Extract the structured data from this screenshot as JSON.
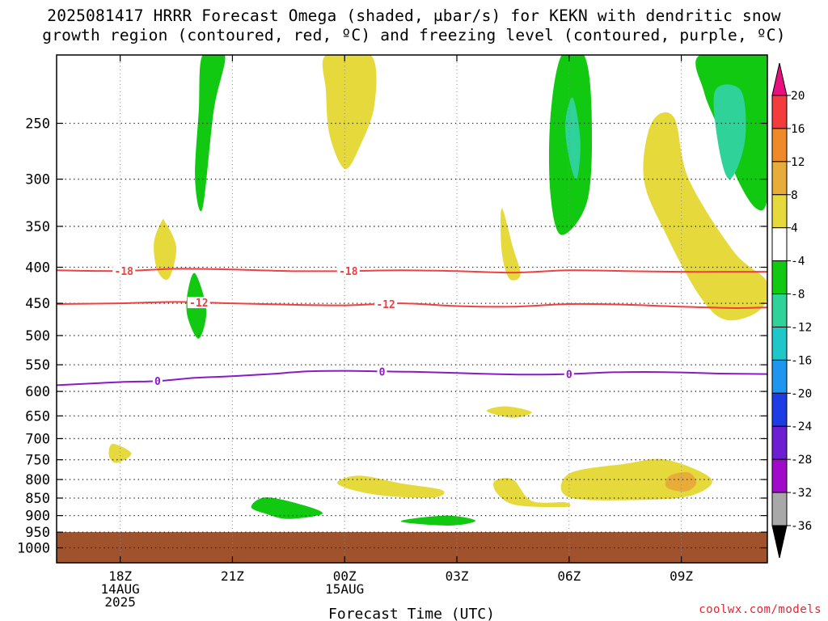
{
  "title": {
    "line1": "2025081417 HRRR Forecast Omega (shaded, μbar/s) for KEKN with dendritic snow",
    "line2": "growth region (contoured, red, ºC) and freezing level (contoured, purple, ºC)"
  },
  "credit": "coolwx.com/models",
  "chart_data": {
    "type": "heatmap",
    "xlabel": "Forecast Time (UTC)",
    "x_range_hours": [
      16.3,
      35.3
    ],
    "x_ticks": [
      {
        "hour": 18,
        "lines": [
          "18Z",
          "14AUG",
          "2025"
        ]
      },
      {
        "hour": 21,
        "lines": [
          "21Z"
        ]
      },
      {
        "hour": 24,
        "lines": [
          "00Z",
          "15AUG"
        ]
      },
      {
        "hour": 27,
        "lines": [
          "03Z"
        ]
      },
      {
        "hour": 30,
        "lines": [
          "06Z"
        ]
      },
      {
        "hour": 33,
        "lines": [
          "09Z"
        ]
      }
    ],
    "y_scale": "log",
    "y_range_hpa": [
      1050,
      200
    ],
    "y_ticks": [
      250,
      300,
      350,
      400,
      450,
      500,
      550,
      600,
      650,
      700,
      750,
      800,
      850,
      900,
      950,
      1000
    ],
    "colorbar": {
      "levels": [
        20,
        16,
        12,
        8,
        4,
        -4,
        -8,
        -12,
        -16,
        -20,
        -24,
        -28,
        -32,
        -36
      ],
      "bands": [
        {
          "from": 16,
          "to": 20,
          "color": "#f53c3c"
        },
        {
          "from": 12,
          "to": 16,
          "color": "#ef8a28"
        },
        {
          "from": 8,
          "to": 12,
          "color": "#e8ac38"
        },
        {
          "from": 4,
          "to": 8,
          "color": "#e6d93c"
        },
        {
          "from": -4,
          "to": 4,
          "color": "#ffffff"
        },
        {
          "from": -8,
          "to": -4,
          "color": "#12c912"
        },
        {
          "from": -12,
          "to": -8,
          "color": "#2fd298"
        },
        {
          "from": -16,
          "to": -12,
          "color": "#1ec8c8"
        },
        {
          "from": -20,
          "to": -16,
          "color": "#1e96f0"
        },
        {
          "from": -24,
          "to": -20,
          "color": "#1e3ce6"
        },
        {
          "from": -28,
          "to": -24,
          "color": "#6e1ed2"
        },
        {
          "from": -32,
          "to": -28,
          "color": "#a00ac8"
        },
        {
          "from": -36,
          "to": -32,
          "color": "#a8a8a8"
        }
      ],
      "top_arrow_color": "#e8107e",
      "bottom_arrow_color": "#000000"
    },
    "ground_level_hpa": 950,
    "ground_color": "#a0522d",
    "contours": [
      {
        "name": "-18 °C",
        "label": "-18",
        "color": "#f04040",
        "points": [
          [
            16.3,
            404
          ],
          [
            18,
            405
          ],
          [
            19.5,
            402
          ],
          [
            21,
            403
          ],
          [
            22.5,
            405
          ],
          [
            24,
            405
          ],
          [
            25.5,
            404
          ],
          [
            27,
            405
          ],
          [
            28.5,
            407
          ],
          [
            30,
            404
          ],
          [
            31.5,
            405
          ],
          [
            33,
            406
          ],
          [
            34.5,
            406
          ],
          [
            35.3,
            406
          ]
        ],
        "label_hours": [
          18.1,
          24.1
        ]
      },
      {
        "name": "-12 °C",
        "label": "-12",
        "color": "#f04040",
        "points": [
          [
            16.3,
            451
          ],
          [
            18,
            450
          ],
          [
            19.5,
            448
          ],
          [
            21,
            450
          ],
          [
            22.5,
            452
          ],
          [
            24,
            453
          ],
          [
            25.5,
            450
          ],
          [
            27,
            454
          ],
          [
            28.5,
            455
          ],
          [
            30,
            451
          ],
          [
            31.5,
            452
          ],
          [
            33,
            455
          ],
          [
            34.5,
            457
          ],
          [
            35.3,
            456
          ]
        ],
        "label_hours": [
          20.1,
          25.1
        ]
      },
      {
        "name": "0 °C",
        "label": "0",
        "color": "#8a1ac8",
        "points": [
          [
            16.3,
            588
          ],
          [
            18,
            582
          ],
          [
            19,
            580
          ],
          [
            20,
            574
          ],
          [
            21,
            571
          ],
          [
            22,
            567
          ],
          [
            23,
            562
          ],
          [
            24,
            561
          ],
          [
            25,
            562
          ],
          [
            26,
            563
          ],
          [
            27,
            565
          ],
          [
            28,
            567
          ],
          [
            29,
            568
          ],
          [
            30,
            567
          ],
          [
            31,
            564
          ],
          [
            32,
            563
          ],
          [
            33,
            564
          ],
          [
            34,
            566
          ],
          [
            35.3,
            567
          ]
        ],
        "label_hours": [
          19.0,
          25.0,
          30.0
        ]
      }
    ],
    "omega_regions": [
      {
        "value_range": [
          4,
          8
        ],
        "color": "#e6d93c",
        "points": [
          [
            23.5,
            200
          ],
          [
            24.7,
            200
          ],
          [
            24.8,
            235
          ],
          [
            24.4,
            270
          ],
          [
            24,
            290
          ],
          [
            23.6,
            260
          ],
          [
            23.5,
            225
          ]
        ]
      },
      {
        "value_range": [
          -8,
          -4
        ],
        "color": "#12c912",
        "points": [
          [
            20.2,
            200
          ],
          [
            20.8,
            200
          ],
          [
            20.5,
            240
          ],
          [
            20.2,
            330
          ],
          [
            20,
            300
          ],
          [
            20.1,
            240
          ]
        ]
      },
      {
        "value_range": [
          4,
          8
        ],
        "color": "#e6d93c",
        "points": [
          [
            19.2,
            345
          ],
          [
            19.5,
            375
          ],
          [
            19.3,
            415
          ],
          [
            19,
            405
          ],
          [
            18.9,
            370
          ],
          [
            19.1,
            345
          ]
        ]
      },
      {
        "value_range": [
          -8,
          -4
        ],
        "color": "#12c912",
        "points": [
          [
            20,
            408
          ],
          [
            20.3,
            460
          ],
          [
            20.1,
            505
          ],
          [
            19.8,
            470
          ],
          [
            19.8,
            435
          ]
        ]
      },
      {
        "value_range": [
          -8,
          -4
        ],
        "color": "#12c912",
        "points": [
          [
            29.8,
            200
          ],
          [
            30.4,
            200
          ],
          [
            30.6,
            240
          ],
          [
            30.5,
            320
          ],
          [
            29.8,
            360
          ],
          [
            29.5,
            315
          ],
          [
            29.5,
            245
          ]
        ]
      },
      {
        "value_range": [
          -12,
          -8
        ],
        "color": "#2fd298",
        "points": [
          [
            30.1,
            230
          ],
          [
            30.3,
            265
          ],
          [
            30.2,
            300
          ],
          [
            30,
            280
          ],
          [
            29.9,
            250
          ]
        ]
      },
      {
        "value_range": [
          4,
          8
        ],
        "color": "#e6d93c",
        "points": [
          [
            28.2,
            330
          ],
          [
            28.5,
            375
          ],
          [
            28.7,
            410
          ],
          [
            28.4,
            415
          ],
          [
            28.2,
            380
          ]
        ]
      },
      {
        "value_range": [
          -8,
          -4
        ],
        "color": "#12c912",
        "points": [
          [
            33.5,
            200
          ],
          [
            35.3,
            200
          ],
          [
            35.4,
            250
          ],
          [
            35.3,
            320
          ],
          [
            35,
            330
          ],
          [
            34.5,
            300
          ],
          [
            34,
            255
          ],
          [
            33.6,
            225
          ]
        ]
      },
      {
        "value_range": [
          -12,
          -8
        ],
        "color": "#2fd298",
        "points": [
          [
            33.9,
            225
          ],
          [
            34.6,
            225
          ],
          [
            34.7,
            265
          ],
          [
            34.3,
            300
          ],
          [
            34,
            270
          ]
        ]
      },
      {
        "value_range": [
          4,
          8
        ],
        "color": "#e6d93c",
        "points": [
          [
            32.2,
            250
          ],
          [
            32.8,
            245
          ],
          [
            33.2,
            300
          ],
          [
            34.4,
            380
          ],
          [
            35.3,
            420
          ],
          [
            35.1,
            460
          ],
          [
            34.2,
            475
          ],
          [
            33.5,
            440
          ],
          [
            32.6,
            360
          ],
          [
            32,
            300
          ]
        ]
      },
      {
        "value_range": [
          4,
          8
        ],
        "color": "#e6d93c",
        "points": [
          [
            17.8,
            712
          ],
          [
            18.3,
            735
          ],
          [
            17.9,
            758
          ],
          [
            17.7,
            740
          ]
        ]
      },
      {
        "value_range": [
          4,
          8
        ],
        "color": "#e6d93c",
        "points": [
          [
            23.8,
            808
          ],
          [
            24.4,
            790
          ],
          [
            25.5,
            810
          ],
          [
            26.6,
            828
          ],
          [
            26.4,
            848
          ],
          [
            25.2,
            845
          ],
          [
            24.3,
            830
          ]
        ]
      },
      {
        "value_range": [
          -8,
          -4
        ],
        "color": "#12c912",
        "points": [
          [
            21.5,
            875
          ],
          [
            21.9,
            848
          ],
          [
            22.9,
            870
          ],
          [
            23.4,
            895
          ],
          [
            22.5,
            910
          ],
          [
            21.9,
            895
          ]
        ]
      },
      {
        "value_range": [
          -8,
          -4
        ],
        "color": "#12c912",
        "points": [
          [
            25.5,
            917
          ],
          [
            26.7,
            900
          ],
          [
            27.5,
            915
          ],
          [
            26.8,
            930
          ]
        ]
      },
      {
        "value_range": [
          4,
          8
        ],
        "color": "#e6d93c",
        "points": [
          [
            28,
            805
          ],
          [
            28.5,
            800
          ],
          [
            29,
            858
          ],
          [
            29.9,
            862
          ],
          [
            29.9,
            875
          ],
          [
            28.6,
            870
          ],
          [
            28.1,
            840
          ]
        ]
      },
      {
        "value_range": [
          4,
          8
        ],
        "color": "#e6d93c",
        "points": [
          [
            27.8,
            640
          ],
          [
            28.3,
            630
          ],
          [
            29,
            642
          ],
          [
            28.5,
            654
          ]
        ]
      },
      {
        "value_range": [
          4,
          8
        ],
        "color": "#e6d93c",
        "points": [
          [
            30,
            785
          ],
          [
            31.5,
            760
          ],
          [
            32.6,
            750
          ],
          [
            33.8,
            798
          ],
          [
            33.3,
            842
          ],
          [
            32,
            855
          ],
          [
            30,
            848
          ]
        ]
      },
      {
        "value_range": [
          8,
          12
        ],
        "color": "#e8ac38",
        "points": [
          [
            32.7,
            790
          ],
          [
            33.2,
            782
          ],
          [
            33.4,
            810
          ],
          [
            33.1,
            832
          ],
          [
            32.6,
            820
          ]
        ]
      }
    ]
  }
}
